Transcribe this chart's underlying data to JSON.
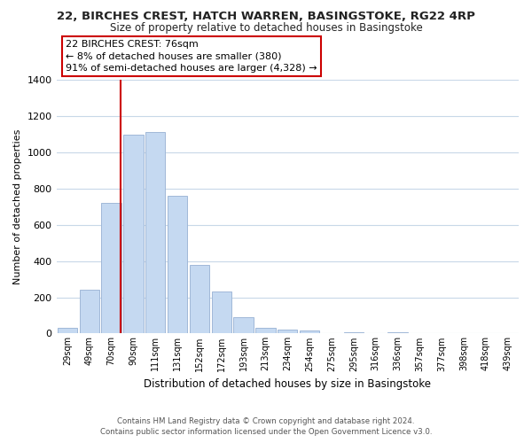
{
  "title_line1": "22, BIRCHES CREST, HATCH WARREN, BASINGSTOKE, RG22 4RP",
  "title_line2": "Size of property relative to detached houses in Basingstoke",
  "xlabel": "Distribution of detached houses by size in Basingstoke",
  "ylabel": "Number of detached properties",
  "bar_labels": [
    "29sqm",
    "49sqm",
    "70sqm",
    "90sqm",
    "111sqm",
    "131sqm",
    "152sqm",
    "172sqm",
    "193sqm",
    "213sqm",
    "234sqm",
    "254sqm",
    "275sqm",
    "295sqm",
    "316sqm",
    "336sqm",
    "357sqm",
    "377sqm",
    "398sqm",
    "418sqm",
    "439sqm"
  ],
  "bar_values": [
    30,
    240,
    720,
    1100,
    1115,
    760,
    380,
    230,
    90,
    30,
    20,
    15,
    0,
    5,
    0,
    5,
    0,
    0,
    0,
    0,
    0
  ],
  "bar_color": "#c5d9f1",
  "bar_edge_color": "#a0b8d8",
  "vline_x": 2.42,
  "vline_color": "#cc0000",
  "annotation_line1": "22 BIRCHES CREST: 76sqm",
  "annotation_line2": "← 8% of detached houses are smaller (380)",
  "annotation_line3": "91% of semi-detached houses are larger (4,328) →",
  "ylim": [
    0,
    1400
  ],
  "yticks": [
    0,
    200,
    400,
    600,
    800,
    1000,
    1200,
    1400
  ],
  "footer_line1": "Contains HM Land Registry data © Crown copyright and database right 2024.",
  "footer_line2": "Contains public sector information licensed under the Open Government Licence v3.0.",
  "background_color": "#ffffff",
  "grid_color": "#c8d8e8"
}
